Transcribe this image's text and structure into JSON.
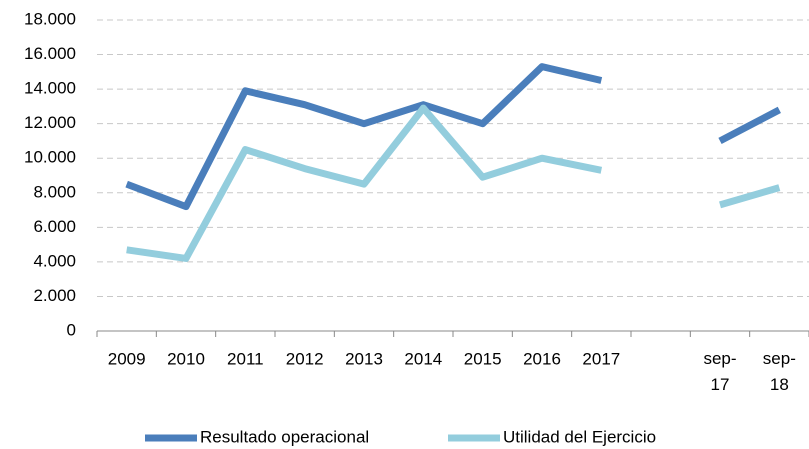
{
  "chart_data": {
    "type": "line",
    "categories": [
      "2009",
      "2010",
      "2011",
      "2012",
      "2013",
      "2014",
      "2015",
      "2016",
      "2017",
      null,
      "sep-17",
      "sep-18"
    ],
    "series": [
      {
        "name": "Resultado operacional",
        "color": "#4a7ebb",
        "values": [
          8500,
          7200,
          13900,
          13100,
          12000,
          13100,
          12000,
          15300,
          14500,
          null,
          11000,
          12800
        ]
      },
      {
        "name": "Utilidad del Ejercicio",
        "color": "#93cddd",
        "values": [
          4700,
          4200,
          10500,
          9400,
          8500,
          12900,
          8900,
          10000,
          9300,
          null,
          7300,
          8300
        ]
      }
    ],
    "ylim": [
      0,
      18000
    ],
    "yticks": [
      0,
      {
        "value": 2000,
        "label": "2.000"
      },
      {
        "value": 4000,
        "label": "4.000"
      },
      {
        "value": 6000,
        "label": "6.000"
      },
      {
        "value": 8000,
        "label": "8.000"
      },
      {
        "value": 10000,
        "label": "10.000"
      },
      {
        "value": 12000,
        "label": "12.000"
      },
      {
        "value": 14000,
        "label": "14.000"
      },
      {
        "value": 16000,
        "label": "16.000"
      },
      {
        "value": 18000,
        "label": "18.000"
      }
    ],
    "grid": true,
    "legend": "bottom"
  }
}
